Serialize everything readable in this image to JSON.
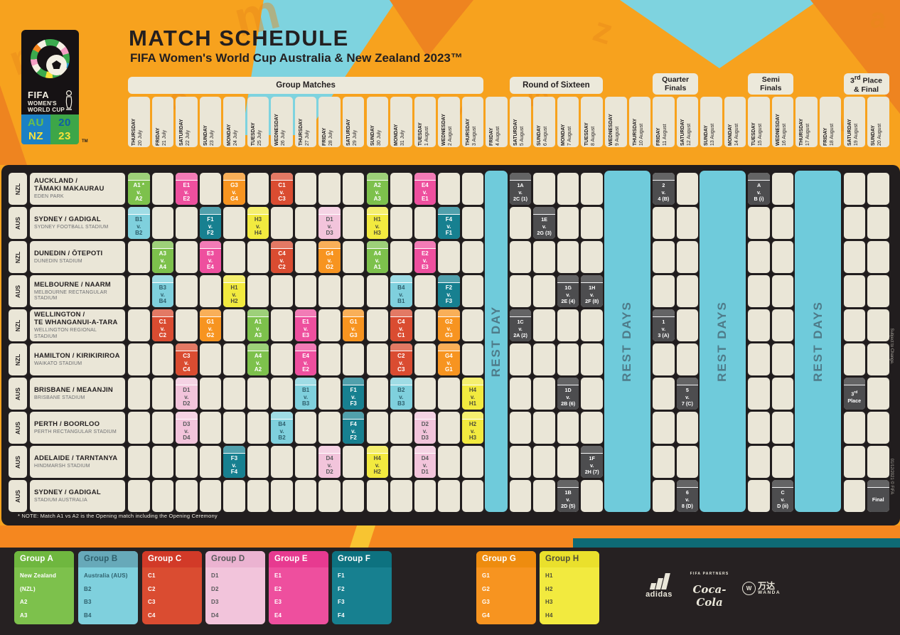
{
  "header": {
    "title": "MATCH SCHEDULE",
    "subtitle": "FIFA Women's World Cup Australia & New Zealand 2023™"
  },
  "logo": {
    "fifa": "FIFA",
    "line1": "WOMEN'S",
    "line2": "WORLD CUP",
    "au": "AU",
    "nz": "NZ",
    "year_top": "20",
    "year_bottom": "23",
    "tm": "TM"
  },
  "phases": [
    {
      "lines": [
        "Group Matches"
      ],
      "col": 1,
      "span": 15
    },
    {
      "lines": [
        "Round of Sixteen"
      ],
      "col": 17,
      "span": 4
    },
    {
      "lines": [
        "Quarter",
        "Finals"
      ],
      "col": 23,
      "span": 2
    },
    {
      "lines": [
        "Semi",
        "Finals"
      ],
      "col": 27,
      "span": 2
    },
    {
      "lines": [
        "3rd Place",
        "& Final"
      ],
      "col": 31,
      "span": 2
    }
  ],
  "dates": [
    {
      "day": "THURSDAY",
      "date": "20 July"
    },
    {
      "day": "FRIDAY",
      "date": "21 July"
    },
    {
      "day": "SATURDAY",
      "date": "22 July"
    },
    {
      "day": "SUNDAY",
      "date": "23 July"
    },
    {
      "day": "MONDAY",
      "date": "24 July"
    },
    {
      "day": "TUESDAY",
      "date": "25 July"
    },
    {
      "day": "WEDNESDAY",
      "date": "26 July"
    },
    {
      "day": "THURSDAY",
      "date": "27 July"
    },
    {
      "day": "FRIDAY",
      "date": "28 July"
    },
    {
      "day": "SATURDAY",
      "date": "29 July"
    },
    {
      "day": "SUNDAY",
      "date": "30 July"
    },
    {
      "day": "MONDAY",
      "date": "31 July"
    },
    {
      "day": "TUESDAY",
      "date": "1 August"
    },
    {
      "day": "WEDNESDAY",
      "date": "2 August"
    },
    {
      "day": "THURSDAY",
      "date": "3 August"
    },
    {
      "day": "FRIDAY",
      "date": "4 August"
    },
    {
      "day": "SATURDAY",
      "date": "5 August"
    },
    {
      "day": "SUNDAY",
      "date": "6 August"
    },
    {
      "day": "MONDAY",
      "date": "7 August"
    },
    {
      "day": "TUESDAY",
      "date": "8 August"
    },
    {
      "day": "WEDNESDAY",
      "date": "9 August"
    },
    {
      "day": "THURSDAY",
      "date": "10 August"
    },
    {
      "day": "FRIDAY",
      "date": "11 August"
    },
    {
      "day": "SATURDAY",
      "date": "12 August"
    },
    {
      "day": "SUNDAY",
      "date": "13 August"
    },
    {
      "day": "MONDAY",
      "date": "14 August"
    },
    {
      "day": "TUESDAY",
      "date": "15 August"
    },
    {
      "day": "WEDNESDAY",
      "date": "16 August"
    },
    {
      "day": "THURSDAY",
      "date": "17 August"
    },
    {
      "day": "FRIDAY",
      "date": "18 August"
    },
    {
      "day": "SATURDAY",
      "date": "19 August"
    },
    {
      "day": "SUNDAY",
      "date": "20 August"
    }
  ],
  "venues": [
    {
      "country": "NZL",
      "city": [
        "AUCKLAND /",
        "TĀMAKI MAKAURAU"
      ],
      "stadium": "EDEN PARK"
    },
    {
      "country": "AUS",
      "city": [
        "SYDNEY / GADIGAL"
      ],
      "stadium": "SYDNEY FOOTBALL STADIUM"
    },
    {
      "country": "NZL",
      "city": [
        "DUNEDIN / ŌTEPOTI"
      ],
      "stadium": "DUNEDIN STADIUM"
    },
    {
      "country": "AUS",
      "city": [
        "MELBOURNE / NAARM"
      ],
      "stadium": "MELBOURNE RECTANGULAR STADIUM"
    },
    {
      "country": "NZL",
      "city": [
        "WELLINGTON /",
        "TE WHANGANUI-A-TARA"
      ],
      "stadium": "WELLINGTON REGIONAL STADIUM"
    },
    {
      "country": "NZL",
      "city": [
        "HAMILTON / KIRIKIRIROA"
      ],
      "stadium": "WAIKATO STADIUM"
    },
    {
      "country": "AUS",
      "city": [
        "BRISBANE / MEAANJIN"
      ],
      "stadium": "BRISBANE STADIUM"
    },
    {
      "country": "AUS",
      "city": [
        "PERTH / BOORLOO"
      ],
      "stadium": "PERTH RECTANGULAR STADIUM"
    },
    {
      "country": "AUS",
      "city": [
        "ADELAIDE / TARNTANYA"
      ],
      "stadium": "HINDMARSH STADIUM"
    },
    {
      "country": "AUS",
      "city": [
        "SYDNEY / GADIGAL"
      ],
      "stadium": "STADIUM AUSTRALIA"
    }
  ],
  "rest_bands": [
    {
      "col": 16,
      "span": 1,
      "label": "REST DAY"
    },
    {
      "col": 21,
      "span": 2,
      "label": "REST DAYS"
    },
    {
      "col": 25,
      "span": 2,
      "label": "REST DAYS"
    },
    {
      "col": 29,
      "span": 2,
      "label": "REST DAYS"
    }
  ],
  "matches": [
    {
      "r": 0,
      "c": 1,
      "g": "A",
      "lines": [
        "A1 *",
        "v.",
        "A2"
      ]
    },
    {
      "r": 0,
      "c": 3,
      "g": "E",
      "lines": [
        "E1",
        "v.",
        "E2"
      ]
    },
    {
      "r": 0,
      "c": 5,
      "g": "G",
      "lines": [
        "G3",
        "v.",
        "G4"
      ]
    },
    {
      "r": 0,
      "c": 7,
      "g": "C",
      "lines": [
        "C1",
        "v.",
        "C3"
      ]
    },
    {
      "r": 0,
      "c": 11,
      "g": "A",
      "lines": [
        "A2",
        "v.",
        "A3"
      ]
    },
    {
      "r": 0,
      "c": 13,
      "g": "E",
      "lines": [
        "E4",
        "v.",
        "E1"
      ]
    },
    {
      "r": 0,
      "c": 17,
      "g": "K",
      "lines": [
        "1A",
        "v.",
        "2C (1)"
      ]
    },
    {
      "r": 0,
      "c": 23,
      "g": "K",
      "lines": [
        "2",
        "v.",
        "4 (B)"
      ]
    },
    {
      "r": 0,
      "c": 27,
      "g": "K",
      "lines": [
        "A",
        "v.",
        "B (i)"
      ]
    },
    {
      "r": 1,
      "c": 1,
      "g": "B",
      "lines": [
        "B1",
        "v.",
        "B2"
      ]
    },
    {
      "r": 1,
      "c": 4,
      "g": "F",
      "lines": [
        "F1",
        "v.",
        "F2"
      ]
    },
    {
      "r": 1,
      "c": 6,
      "g": "H",
      "lines": [
        "H3",
        "v.",
        "H4"
      ]
    },
    {
      "r": 1,
      "c": 9,
      "g": "D",
      "lines": [
        "D1",
        "v.",
        "D3"
      ]
    },
    {
      "r": 1,
      "c": 11,
      "g": "H",
      "lines": [
        "H1",
        "v.",
        "H3"
      ]
    },
    {
      "r": 1,
      "c": 14,
      "g": "F",
      "lines": [
        "F4",
        "v.",
        "F1"
      ]
    },
    {
      "r": 1,
      "c": 18,
      "g": "K",
      "lines": [
        "1E",
        "v.",
        "2G (3)"
      ]
    },
    {
      "r": 2,
      "c": 2,
      "g": "A",
      "lines": [
        "A3",
        "v.",
        "A4"
      ]
    },
    {
      "r": 2,
      "c": 4,
      "g": "E",
      "lines": [
        "E3",
        "v.",
        "E4"
      ]
    },
    {
      "r": 2,
      "c": 7,
      "g": "C",
      "lines": [
        "C4",
        "v.",
        "C2"
      ]
    },
    {
      "r": 2,
      "c": 9,
      "g": "G",
      "lines": [
        "G4",
        "v.",
        "G2"
      ]
    },
    {
      "r": 2,
      "c": 11,
      "g": "A",
      "lines": [
        "A4",
        "v.",
        "A1"
      ]
    },
    {
      "r": 2,
      "c": 13,
      "g": "E",
      "lines": [
        "E2",
        "v.",
        "E3"
      ]
    },
    {
      "r": 3,
      "c": 2,
      "g": "B",
      "lines": [
        "B3",
        "v.",
        "B4"
      ]
    },
    {
      "r": 3,
      "c": 5,
      "g": "H",
      "lines": [
        "H1",
        "v.",
        "H2"
      ]
    },
    {
      "r": 3,
      "c": 12,
      "g": "B",
      "lines": [
        "B4",
        "v.",
        "B1"
      ]
    },
    {
      "r": 3,
      "c": 14,
      "g": "F",
      "lines": [
        "F2",
        "v.",
        "F3"
      ]
    },
    {
      "r": 3,
      "c": 19,
      "g": "K",
      "lines": [
        "1G",
        "v.",
        "2E (4)"
      ]
    },
    {
      "r": 3,
      "c": 20,
      "g": "K",
      "lines": [
        "1H",
        "v.",
        "2F (8)"
      ]
    },
    {
      "r": 4,
      "c": 2,
      "g": "C",
      "lines": [
        "C1",
        "v.",
        "C2"
      ]
    },
    {
      "r": 4,
      "c": 4,
      "g": "G",
      "lines": [
        "G1",
        "v.",
        "G2"
      ]
    },
    {
      "r": 4,
      "c": 6,
      "g": "A",
      "lines": [
        "A1",
        "v.",
        "A3"
      ]
    },
    {
      "r": 4,
      "c": 8,
      "g": "E",
      "lines": [
        "E1",
        "v.",
        "E3"
      ]
    },
    {
      "r": 4,
      "c": 10,
      "g": "G",
      "lines": [
        "G1",
        "v.",
        "G3"
      ]
    },
    {
      "r": 4,
      "c": 12,
      "g": "C",
      "lines": [
        "C4",
        "v.",
        "C1"
      ]
    },
    {
      "r": 4,
      "c": 14,
      "g": "G",
      "lines": [
        "G2",
        "v.",
        "G3"
      ]
    },
    {
      "r": 4,
      "c": 17,
      "g": "K",
      "lines": [
        "1C",
        "v.",
        "2A (2)"
      ]
    },
    {
      "r": 4,
      "c": 23,
      "g": "K",
      "lines": [
        "1",
        "v.",
        "3 (A)"
      ]
    },
    {
      "r": 5,
      "c": 3,
      "g": "C",
      "lines": [
        "C3",
        "v.",
        "C4"
      ]
    },
    {
      "r": 5,
      "c": 6,
      "g": "A",
      "lines": [
        "A4",
        "v.",
        "A2"
      ]
    },
    {
      "r": 5,
      "c": 8,
      "g": "E",
      "lines": [
        "E4",
        "v.",
        "E2"
      ]
    },
    {
      "r": 5,
      "c": 12,
      "g": "C",
      "lines": [
        "C2",
        "v.",
        "C3"
      ]
    },
    {
      "r": 5,
      "c": 14,
      "g": "G",
      "lines": [
        "G4",
        "v.",
        "G1"
      ]
    },
    {
      "r": 6,
      "c": 3,
      "g": "D",
      "lines": [
        "D1",
        "v.",
        "D2"
      ]
    },
    {
      "r": 6,
      "c": 8,
      "g": "B",
      "lines": [
        "B1",
        "v.",
        "B3"
      ]
    },
    {
      "r": 6,
      "c": 10,
      "g": "F",
      "lines": [
        "F1",
        "v.",
        "F3"
      ]
    },
    {
      "r": 6,
      "c": 12,
      "g": "B",
      "lines": [
        "B2",
        "v.",
        "B3"
      ]
    },
    {
      "r": 6,
      "c": 15,
      "g": "H",
      "lines": [
        "H4",
        "v.",
        "H1"
      ]
    },
    {
      "r": 6,
      "c": 19,
      "g": "K",
      "lines": [
        "1D",
        "v.",
        "2B (6)"
      ]
    },
    {
      "r": 6,
      "c": 24,
      "g": "K",
      "lines": [
        "5",
        "v.",
        "7 (C)"
      ]
    },
    {
      "r": 6,
      "c": 31,
      "g": "K",
      "lines": [
        "3rd",
        "Place"
      ]
    },
    {
      "r": 7,
      "c": 3,
      "g": "D",
      "lines": [
        "D3",
        "v.",
        "D4"
      ]
    },
    {
      "r": 7,
      "c": 7,
      "g": "B",
      "lines": [
        "B4",
        "v.",
        "B2"
      ]
    },
    {
      "r": 7,
      "c": 10,
      "g": "F",
      "lines": [
        "F4",
        "v.",
        "F2"
      ]
    },
    {
      "r": 7,
      "c": 13,
      "g": "D",
      "lines": [
        "D2",
        "v.",
        "D3"
      ]
    },
    {
      "r": 7,
      "c": 15,
      "g": "H",
      "lines": [
        "H2",
        "v.",
        "H3"
      ]
    },
    {
      "r": 8,
      "c": 5,
      "g": "F",
      "lines": [
        "F3",
        "v.",
        "F4"
      ]
    },
    {
      "r": 8,
      "c": 9,
      "g": "D",
      "lines": [
        "D4",
        "v.",
        "D2"
      ]
    },
    {
      "r": 8,
      "c": 11,
      "g": "H",
      "lines": [
        "H4",
        "v.",
        "H2"
      ]
    },
    {
      "r": 8,
      "c": 13,
      "g": "D",
      "lines": [
        "D4",
        "v.",
        "D1"
      ]
    },
    {
      "r": 8,
      "c": 20,
      "g": "K",
      "lines": [
        "1F",
        "v.",
        "2H (7)"
      ]
    },
    {
      "r": 9,
      "c": 19,
      "g": "K",
      "lines": [
        "1B",
        "v.",
        "2D (5)"
      ]
    },
    {
      "r": 9,
      "c": 24,
      "g": "K",
      "lines": [
        "6",
        "v.",
        "8 (D)"
      ]
    },
    {
      "r": 9,
      "c": 28,
      "g": "K",
      "lines": [
        "C",
        "v.",
        "D (ii)"
      ]
    },
    {
      "r": 9,
      "c": 32,
      "g": "K",
      "lines": [
        "Final"
      ]
    }
  ],
  "note": "* NOTE: Match A1 vs A2 is the Opening match including the Opening Ceremony",
  "side_notes": {
    "top": "Subject to Change.",
    "bottom": "01/12/2021    © FIFA"
  },
  "groups_legend": [
    {
      "id": "A",
      "name": "Group A",
      "items": [
        "New Zealand (NZL)",
        "A2",
        "A3",
        "A4"
      ]
    },
    {
      "id": "B",
      "name": "Group B",
      "items": [
        "Australia (AUS)",
        "B2",
        "B3",
        "B4"
      ]
    },
    {
      "id": "C",
      "name": "Group C",
      "items": [
        "C1",
        "C2",
        "C3",
        "C4"
      ]
    },
    {
      "id": "D",
      "name": "Group D",
      "items": [
        "D1",
        "D2",
        "D3",
        "D4"
      ]
    },
    {
      "id": "E",
      "name": "Group E",
      "items": [
        "E1",
        "E2",
        "E3",
        "E4"
      ]
    },
    {
      "id": "F",
      "name": "Group F",
      "items": [
        "F1",
        "F2",
        "F3",
        "F4"
      ]
    },
    {
      "id": "G",
      "name": "Group G",
      "items": [
        "G1",
        "G2",
        "G3",
        "G4"
      ]
    },
    {
      "id": "H",
      "name": "Group H",
      "items": [
        "H1",
        "H2",
        "H3",
        "H4"
      ]
    }
  ],
  "sponsors": {
    "partners_label": "FIFA PARTNERS",
    "adidas_label": "adidas",
    "cocacola_label": "Coca-Cola",
    "wanda_cn": "万达",
    "wanda_label": "WANDA",
    "wanda_circle": "W"
  },
  "decor_letters": [
    "m",
    "o",
    "n",
    "w",
    "u",
    "z",
    "a",
    "io"
  ],
  "colors": {
    "background_orange": "#F7A21E",
    "accent_orange_dark": "#EE8420",
    "accent_cyan": "#7ED3DF",
    "rest_band": "#6FCBDB",
    "panel_dark": "#211D1E",
    "cell_beige": "#EAE6D7",
    "knockout_gray": "#4D4D4F",
    "groups": {
      "A": {
        "body": "#7DC14C",
        "head": "#6FB73F",
        "text": "#FFFFFF"
      },
      "B": {
        "body": "#7FD0DD",
        "head": "#67A9B9",
        "text": "#2E5F6C"
      },
      "C": {
        "body": "#DA4C31",
        "head": "#D23A28",
        "text": "#FFFFFF"
      },
      "D": {
        "body": "#F2C4DB",
        "head": "#EBB3D1",
        "text": "#58595B"
      },
      "E": {
        "body": "#EE4F9E",
        "head": "#E73A90",
        "text": "#FFFFFF"
      },
      "F": {
        "body": "#178090",
        "head": "#0D7280",
        "text": "#FFFFFF"
      },
      "G": {
        "body": "#F79420",
        "head": "#EE8C0F",
        "text": "#FFFFFF"
      },
      "H": {
        "body": "#F2EA3F",
        "head": "#EAE02C",
        "text": "#4E4E37"
      },
      "K": {
        "body": "#4D4D4F",
        "head": "#5A5A5C",
        "text": "#FFFFFF"
      }
    }
  }
}
